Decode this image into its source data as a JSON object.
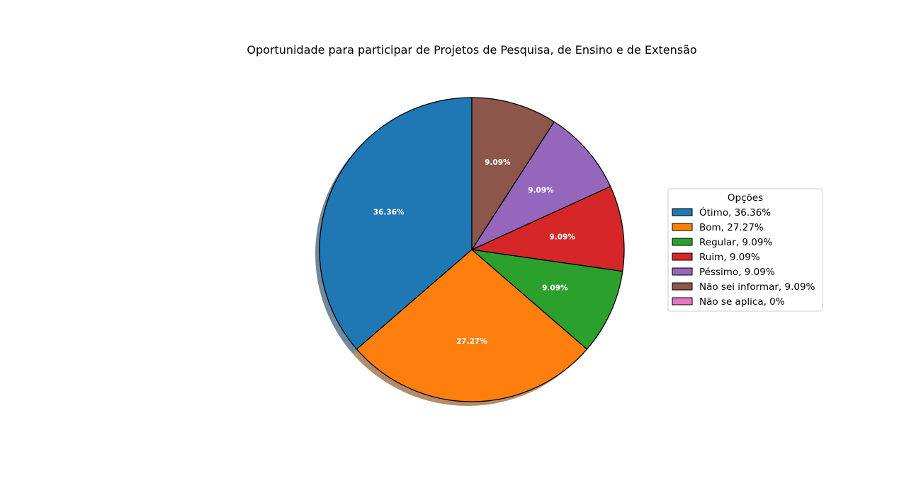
{
  "chart_data": {
    "type": "pie",
    "title": "Oportunidade para participar de Projetos de Pesquisa, de Ensino e de Extensão",
    "legend_title": "Opções",
    "legend_position": "right",
    "shadow": true,
    "start_angle_deg": 90,
    "direction": "counterclockwise",
    "slices": [
      {
        "label": "Ótimo",
        "value": 36.36,
        "display": "36.36%",
        "legend": "Ótimo, 36.36%",
        "color": "#1f77b4"
      },
      {
        "label": "Bom",
        "value": 27.27,
        "display": "27.27%",
        "legend": "Bom, 27.27%",
        "color": "#ff7f0e"
      },
      {
        "label": "Regular",
        "value": 9.09,
        "display": "9.09%",
        "legend": "Regular, 9.09%",
        "color": "#2ca02c"
      },
      {
        "label": "Ruim",
        "value": 9.09,
        "display": "9.09%",
        "legend": "Ruim, 9.09%",
        "color": "#d62728"
      },
      {
        "label": "Péssimo",
        "value": 9.09,
        "display": "9.09%",
        "legend": "Péssimo, 9.09%",
        "color": "#9467bd"
      },
      {
        "label": "Não sei informar",
        "value": 9.09,
        "display": "9.09%",
        "legend": "Não sei informar, 9.09%",
        "color": "#8c564b"
      },
      {
        "label": "Não se aplica",
        "value": 0,
        "display": "0%",
        "legend": "Não se aplica, 0%",
        "color": "#e377c2"
      }
    ]
  }
}
